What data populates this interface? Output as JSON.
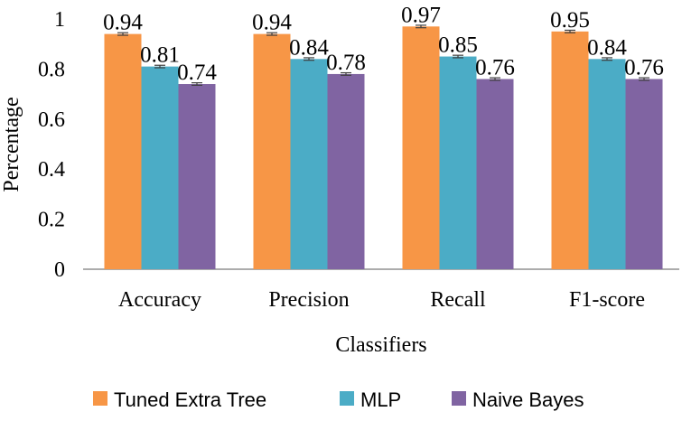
{
  "chart_data": {
    "type": "bar",
    "title": "",
    "xlabel": "Classifiers",
    "ylabel": "Percentage",
    "categories": [
      "Accuracy",
      "Precision",
      "Recall",
      "F1-score"
    ],
    "ylim": [
      0,
      1
    ],
    "yticks": [
      0,
      0.2,
      0.4,
      0.6,
      0.8,
      1
    ],
    "ytick_labels": [
      "0",
      "0.2",
      "0.4",
      "0.6",
      "0.8",
      "1"
    ],
    "grid": false,
    "error_bar_half_width": 0.005,
    "series": [
      {
        "name": "Tuned Extra Tree",
        "color": "#F79646",
        "values": [
          0.94,
          0.94,
          0.97,
          0.95
        ],
        "labels": [
          "0.94",
          "0.94",
          "0.97",
          "0.95"
        ]
      },
      {
        "name": "MLP",
        "color": "#4BACC6",
        "values": [
          0.81,
          0.84,
          0.85,
          0.84
        ],
        "labels": [
          "0.81",
          "0.84",
          "0.85",
          "0.84"
        ]
      },
      {
        "name": "Naive Bayes",
        "color": "#8064A2",
        "values": [
          0.74,
          0.78,
          0.76,
          0.76
        ],
        "labels": [
          "0.74",
          "0.78",
          "0.76",
          "0.76"
        ]
      }
    ],
    "legend_position": "bottom"
  }
}
